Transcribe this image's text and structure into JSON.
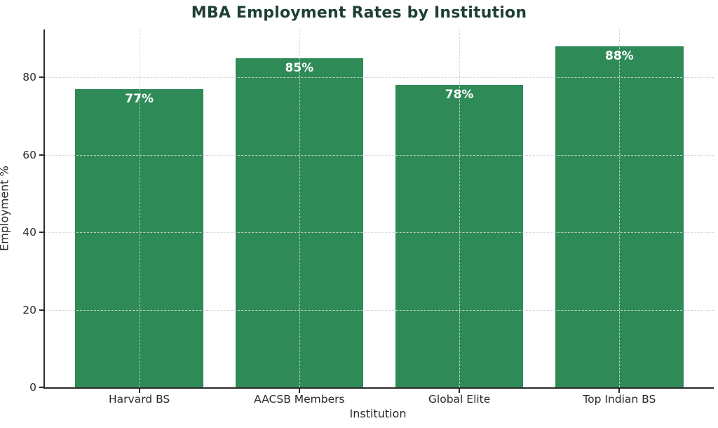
{
  "chart_data": {
    "type": "bar",
    "title": "MBA Employment Rates by Institution",
    "xlabel": "Institution",
    "ylabel": "Employment %",
    "categories": [
      "Harvard BS",
      "AACSB Members",
      "Global Elite",
      "Top Indian BS"
    ],
    "values": [
      77,
      85,
      78,
      88
    ],
    "value_labels": [
      "77%",
      "85%",
      "78%",
      "88%"
    ],
    "yticks": [
      0,
      20,
      40,
      60,
      80
    ],
    "ylim": [
      0,
      92.4
    ],
    "xlim_category_units": [
      -0.59,
      3.59
    ],
    "bar_width_category_units": 0.8,
    "grid": "dashed, horizontal at yticks and vertical at category centers, drawn over bars",
    "legend": "none",
    "colors": {
      "bar": "#2e8b57",
      "title": "#1e3f34",
      "axis_text": "#2b2b2b",
      "spine": "#2b2b2b",
      "grid": "#d4d4d4",
      "value_label": "#ffffff",
      "background": "#ffffff"
    }
  }
}
